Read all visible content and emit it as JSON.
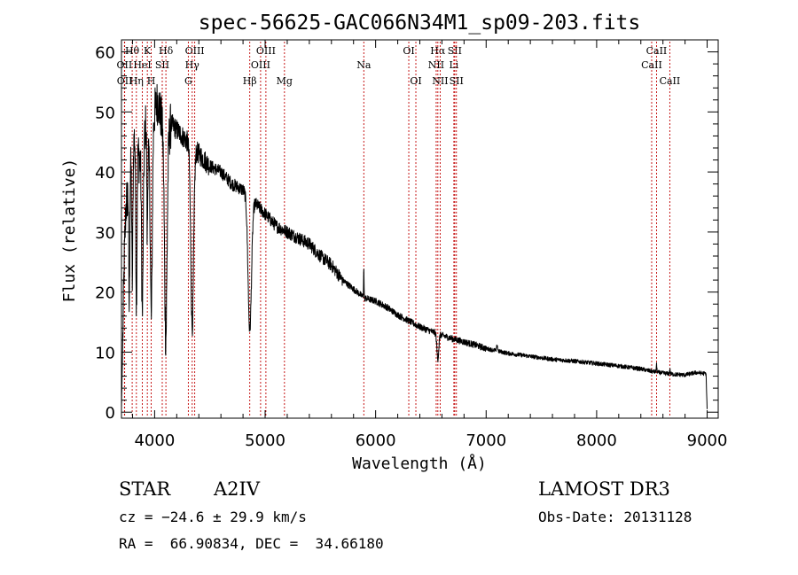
{
  "chart_data": {
    "type": "line",
    "title": "spec-56625-GAC066N34M1_sp09-203.fits",
    "xlabel": "Wavelength (Å)",
    "ylabel": "Flux (relative)",
    "xlim": [
      3700,
      9100
    ],
    "ylim": [
      -1,
      62
    ],
    "xticks": [
      4000,
      5000,
      6000,
      7000,
      8000,
      9000
    ],
    "yticks": [
      0,
      10,
      20,
      30,
      40,
      50,
      60
    ],
    "spectrum_anchors": [
      [
        3700,
        0.5
      ],
      [
        3710,
        10
      ],
      [
        3725,
        25
      ],
      [
        3740,
        34
      ],
      [
        3760,
        37
      ],
      [
        3780,
        40
      ],
      [
        3800,
        44
      ],
      [
        3830,
        47
      ],
      [
        3860,
        42
      ],
      [
        3900,
        44
      ],
      [
        3930,
        50
      ],
      [
        3950,
        42
      ],
      [
        3970,
        46
      ],
      [
        4000,
        50
      ],
      [
        4030,
        52
      ],
      [
        4060,
        49
      ],
      [
        4100,
        44
      ],
      [
        4150,
        48
      ],
      [
        4200,
        47
      ],
      [
        4250,
        46
      ],
      [
        4300,
        45
      ],
      [
        4350,
        44
      ],
      [
        4400,
        43
      ],
      [
        4500,
        41
      ],
      [
        4600,
        40
      ],
      [
        4700,
        38
      ],
      [
        4800,
        37
      ],
      [
        4900,
        35
      ],
      [
        5000,
        33
      ],
      [
        5100,
        31
      ],
      [
        5200,
        30
      ],
      [
        5300,
        29
      ],
      [
        5400,
        28
      ],
      [
        5500,
        26
      ],
      [
        5600,
        24.5
      ],
      [
        5700,
        22
      ],
      [
        5800,
        20.5
      ],
      [
        5900,
        19
      ],
      [
        6000,
        18.5
      ],
      [
        6100,
        17.5
      ],
      [
        6200,
        16.2
      ],
      [
        6300,
        15.2
      ],
      [
        6400,
        14.2
      ],
      [
        6500,
        13.5
      ],
      [
        6600,
        12.8
      ],
      [
        6700,
        12.2
      ],
      [
        6800,
        11.7
      ],
      [
        6900,
        11.2
      ],
      [
        7000,
        10.6
      ],
      [
        7200,
        9.8
      ],
      [
        7400,
        9.3
      ],
      [
        7600,
        8.8
      ],
      [
        7800,
        8.5
      ],
      [
        8000,
        8.1
      ],
      [
        8200,
        7.7
      ],
      [
        8400,
        7.2
      ],
      [
        8500,
        6.8
      ],
      [
        8600,
        6.5
      ],
      [
        8700,
        6.3
      ],
      [
        8800,
        6.2
      ],
      [
        8900,
        6.6
      ],
      [
        8990,
        6.4
      ],
      [
        9000,
        0.5
      ]
    ],
    "absorption_lines": [
      {
        "wavelength": 3770,
        "depth": 0.55,
        "width": 6
      },
      {
        "wavelength": 3798,
        "depth": 0.5,
        "width": 7
      },
      {
        "wavelength": 3835,
        "depth": 0.6,
        "width": 8
      },
      {
        "wavelength": 3889,
        "depth": 0.62,
        "width": 10
      },
      {
        "wavelength": 3933,
        "depth": 0.4,
        "width": 6
      },
      {
        "wavelength": 3970,
        "depth": 0.66,
        "width": 12
      },
      {
        "wavelength": 4101,
        "depth": 0.72,
        "width": 16
      },
      {
        "wavelength": 4340,
        "depth": 0.68,
        "width": 18
      },
      {
        "wavelength": 4861,
        "depth": 0.62,
        "width": 22
      },
      {
        "wavelength": 6563,
        "depth": 0.32,
        "width": 12
      }
    ],
    "emission_features": [
      {
        "wavelength": 5893,
        "height": 5,
        "width": 3
      },
      {
        "wavelength": 7100,
        "height": 1,
        "width": 6
      },
      {
        "wavelength": 8542,
        "height": 1.2,
        "width": 4
      },
      {
        "wavelength": 8662,
        "height": 0.8,
        "width": 4
      }
    ],
    "line_markers": [
      {
        "label": "Hθ",
        "wavelength": 3797,
        "row": 1
      },
      {
        "label": "OII",
        "wavelength": 3727,
        "row": 2
      },
      {
        "label": "OII",
        "wavelength": 3729,
        "row": 3
      },
      {
        "label": "K",
        "wavelength": 3934,
        "row": 1
      },
      {
        "label": "HeI",
        "wavelength": 3889,
        "row": 2
      },
      {
        "label": "Hη",
        "wavelength": 3835,
        "row": 3
      },
      {
        "label": "SII",
        "wavelength": 4069,
        "row": 2
      },
      {
        "label": "H",
        "wavelength": 3969,
        "row": 3
      },
      {
        "label": "Hδ",
        "wavelength": 4102,
        "row": 1
      },
      {
        "label": "OIII",
        "wavelength": 4363,
        "row": 1
      },
      {
        "label": "Hγ",
        "wavelength": 4340,
        "row": 2
      },
      {
        "label": "G",
        "wavelength": 4305,
        "row": 3
      },
      {
        "label": "OIII",
        "wavelength": 5007,
        "row": 1
      },
      {
        "label": "OIII",
        "wavelength": 4959,
        "row": 2
      },
      {
        "label": "Hβ",
        "wavelength": 4861,
        "row": 3
      },
      {
        "label": "Mg",
        "wavelength": 5175,
        "row": 3
      },
      {
        "label": "Na",
        "wavelength": 5893,
        "row": 2
      },
      {
        "label": "OI",
        "wavelength": 6300,
        "row": 1
      },
      {
        "label": "OI",
        "wavelength": 6364,
        "row": 3
      },
      {
        "label": "Hα",
        "wavelength": 6563,
        "row": 1
      },
      {
        "label": "NII",
        "wavelength": 6548,
        "row": 2
      },
      {
        "label": "NII",
        "wavelength": 6584,
        "row": 3
      },
      {
        "label": "SII",
        "wavelength": 6716,
        "row": 1
      },
      {
        "label": "Li",
        "wavelength": 6708,
        "row": 2
      },
      {
        "label": "SII",
        "wavelength": 6731,
        "row": 3
      },
      {
        "label": "CaII",
        "wavelength": 8542,
        "row": 1
      },
      {
        "label": "CaII",
        "wavelength": 8498,
        "row": 2
      },
      {
        "label": "CaII",
        "wavelength": 8662,
        "row": 3
      }
    ]
  },
  "info": {
    "class_label": "STAR",
    "subclass": "A2IV",
    "survey": "LAMOST DR3",
    "redshift": "cz = −24.6 ± 29.9 km/s",
    "obs_date": "Obs-Date: 20131128",
    "coords": "RA =  66.90834, DEC =  34.66180"
  }
}
